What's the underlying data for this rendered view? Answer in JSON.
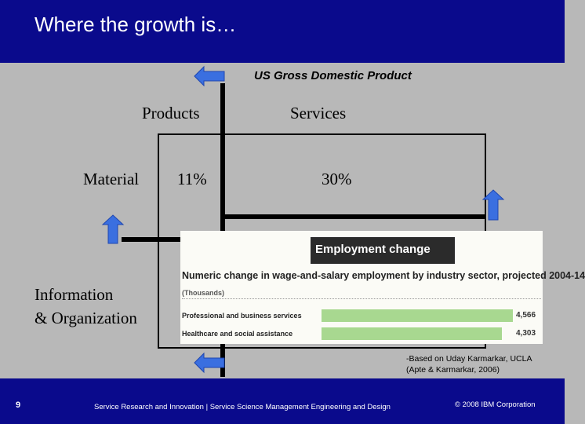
{
  "header": {
    "title": "Where the growth is…",
    "bg_color": "#0a0a8c"
  },
  "matrix": {
    "title": "US Gross Domestic Product",
    "col_products": "Products",
    "col_services": "Services",
    "row_material": "Material",
    "row_info": [
      "Information",
      "& Organization"
    ],
    "cell_material_products": "11%",
    "cell_material_services": "30%"
  },
  "employment": {
    "title": "Employment change",
    "subtitle": "Numeric change in wage-and-salary employment by industry sector, projected 2004-14",
    "unit": "(Thousands)",
    "rows": [
      {
        "label": "Professional and business services",
        "value": "4,566",
        "bar_fraction": 1.0
      },
      {
        "label": "Healthcare and social assistance",
        "value": "4,303",
        "bar_fraction": 0.942
      }
    ],
    "bar_color": "#a8d890"
  },
  "citation": [
    "-Based on Uday Karmarkar, UCLA",
    "(Apte & Karmarkar, 2006)"
  ],
  "footer": {
    "slide_number": "9",
    "center": "Service Research and Innovation  |  Service Science Management Engineering and Design",
    "right": "© 2008 IBM Corporation"
  },
  "arrows": {
    "color": "#3a6fe0",
    "icons": [
      "arrow-left-icon",
      "arrow-up-icon",
      "arrow-up-icon",
      "arrow-left-icon"
    ]
  }
}
